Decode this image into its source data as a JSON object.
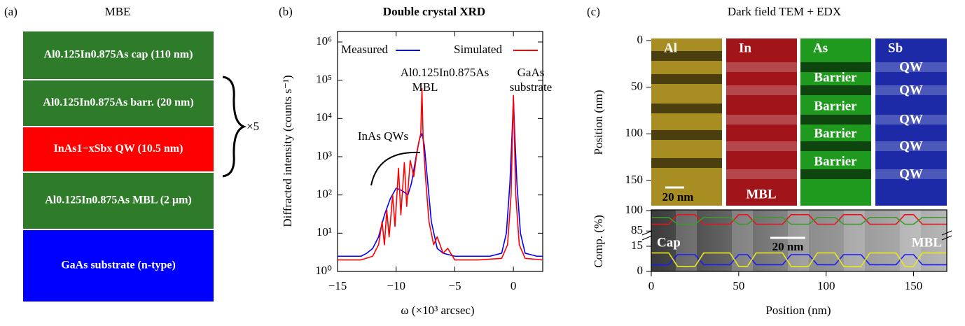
{
  "panel_a": {
    "label": "(a)",
    "title": "MBE",
    "layers": [
      {
        "text": "Al0.125In0.875As cap (110 nm)",
        "color": "#2e7b2a"
      },
      {
        "text": "Al0.125In0.875As barr. (20 nm)",
        "color": "#2e7b2a"
      },
      {
        "text": "InAs1−xSbx QW (10.5 nm)",
        "color": "#ff0000"
      },
      {
        "text": "Al0.125In0.875As MBL (2 μm)",
        "color": "#2e7b2a"
      },
      {
        "text": "GaAs substrate (n-type)",
        "color": "#0000ff"
      }
    ],
    "repeat": "×5"
  },
  "chart_data": [
    {
      "type": "line",
      "label": "(b)",
      "title": "Double crystal XRD",
      "xlabel": "ω (×10³ arcsec)",
      "ylabel": "Diffracted intensity (counts s⁻¹)",
      "log_y": true,
      "xlim": [
        -15,
        2.5
      ],
      "xticks": [
        {
          "value": -15,
          "label": "−15"
        },
        {
          "value": -10,
          "label": "−10"
        },
        {
          "value": -5,
          "label": "−5"
        },
        0
      ],
      "ylim": [
        1,
        1000000
      ],
      "yticks": [
        {
          "value": 1,
          "label": "10⁰"
        },
        {
          "value": 10,
          "label": "10¹"
        },
        {
          "value": 100,
          "label": "10²"
        },
        {
          "value": 1000,
          "label": "10³"
        },
        {
          "value": 10000,
          "label": "10⁴"
        },
        {
          "value": 100000,
          "label": "10⁵"
        },
        {
          "value": 1000000,
          "label": "10⁶"
        }
      ],
      "annotations": [
        "Al0.125In0.875As",
        "MBL",
        "GaAs",
        "substrate",
        "InAs QWs"
      ],
      "series": [
        {
          "name": "Measured",
          "color": "#0000ff",
          "x": [
            -15,
            -14,
            -13,
            -12.5,
            -12,
            -11.5,
            -11,
            -10.5,
            -10,
            -9.5,
            -9,
            -8.7,
            -8.3,
            -8,
            -7.8,
            -7.6,
            -7.3,
            -7,
            -6.5,
            -6,
            -5,
            -4,
            -3,
            -2,
            -1,
            -0.6,
            -0.3,
            -0.1,
            0,
            0.1,
            0.3,
            0.6,
            1,
            2,
            2.5
          ],
          "values": [
            2.5,
            2.5,
            2.5,
            3,
            4,
            8,
            30,
            80,
            150,
            130,
            100,
            200,
            1000,
            3000,
            4000,
            2000,
            200,
            20,
            4,
            3,
            2.5,
            2.5,
            2.5,
            2.5,
            3,
            10,
            200,
            5000,
            35000,
            5000,
            200,
            10,
            3,
            2.5,
            2.5
          ]
        },
        {
          "name": "Simulated",
          "color": "#ff0000",
          "x": [
            -15,
            -13,
            -12,
            -11.5,
            -11.2,
            -11,
            -10.8,
            -10.6,
            -10.3,
            -10.1,
            -9.8,
            -9.6,
            -9.3,
            -9.1,
            -8.8,
            -8.5,
            -8.2,
            -8,
            -7.9,
            -7.8,
            -7.7,
            -7.5,
            -7.2,
            -6.8,
            -6.5,
            -6,
            -5.6,
            -5,
            -3,
            -1,
            -0.5,
            -0.2,
            0,
            0.2,
            0.5,
            1,
            2.5
          ],
          "values": [
            2,
            2,
            2.5,
            5,
            20,
            5,
            40,
            8,
            100,
            15,
            500,
            30,
            700,
            50,
            800,
            300,
            1500,
            3000,
            4000,
            60000,
            3000,
            300,
            20,
            5,
            8,
            3,
            4,
            2,
            2,
            2.2,
            5,
            100,
            40000,
            100,
            5,
            2.2,
            2
          ]
        }
      ]
    },
    {
      "type": "line",
      "xlabel": "Position (nm)",
      "ylabel": "Comp. (%)",
      "xlim": [
        0,
        169
      ],
      "xticks": [
        0,
        50,
        100,
        150
      ],
      "ylim": [
        0,
        100
      ],
      "yticks": [
        0,
        15,
        85,
        100
      ],
      "ybreak": [
        20,
        80
      ],
      "annotations": [
        "Cap",
        "20 nm",
        "MBL"
      ],
      "x": [
        0,
        5,
        10,
        15,
        20,
        25,
        30,
        35,
        40,
        45,
        50,
        55,
        60,
        65,
        70,
        75,
        80,
        85,
        90,
        95,
        100,
        105,
        110,
        115,
        120,
        125,
        130,
        135,
        140,
        145,
        150,
        155,
        160,
        165,
        170,
        175
      ],
      "series": [
        {
          "color": "#e8141a",
          "values": [
            90,
            90,
            90,
            97,
            97,
            97,
            90,
            90,
            90,
            90,
            97,
            97,
            90,
            90,
            90,
            90,
            97,
            97,
            97,
            90,
            90,
            90,
            97,
            97,
            97,
            90,
            90,
            90,
            90,
            97,
            97,
            90,
            90,
            90,
            90,
            90
          ]
        },
        {
          "color": "#3a9a2a",
          "values": [
            95,
            95,
            95,
            90,
            90,
            90,
            95,
            95,
            95,
            95,
            90,
            90,
            95,
            95,
            95,
            95,
            90,
            90,
            90,
            95,
            95,
            95,
            90,
            90,
            90,
            95,
            95,
            95,
            95,
            90,
            90,
            95,
            95,
            95,
            95,
            95
          ]
        },
        {
          "color": "#1a1aff",
          "values": [
            4,
            4,
            4,
            10,
            10,
            10,
            4,
            4,
            4,
            4,
            10,
            10,
            4,
            4,
            4,
            4,
            10,
            10,
            10,
            4,
            4,
            4,
            10,
            10,
            10,
            4,
            4,
            4,
            4,
            10,
            10,
            4,
            4,
            4,
            4,
            4
          ]
        },
        {
          "color": "#e8e81a",
          "values": [
            11,
            11,
            11,
            3,
            3,
            3,
            11,
            11,
            11,
            11,
            3,
            3,
            11,
            11,
            11,
            11,
            3,
            3,
            3,
            11,
            11,
            11,
            3,
            3,
            3,
            11,
            11,
            11,
            11,
            3,
            3,
            11,
            11,
            11,
            11,
            11
          ]
        }
      ]
    }
  ],
  "panel_c": {
    "label": "(c)",
    "title": "Dark field TEM + EDX",
    "ylabel": "Position (nm)",
    "ylim": [
      0,
      177
    ],
    "yticks": [
      0,
      50,
      100,
      150
    ],
    "channels": [
      {
        "name": "Al",
        "color": "#a88d22"
      },
      {
        "name": "In",
        "color": "#a0141a"
      },
      {
        "name": "As",
        "color": "#1f9a1f"
      },
      {
        "name": "Sb",
        "color": "#1c2aa8"
      }
    ],
    "barrier_labels": [
      "Barrier",
      "Barrier",
      "Barrier",
      "Barrier"
    ],
    "qw_labels": [
      "QW",
      "QW",
      "QW",
      "QW",
      "QW"
    ],
    "mbl_label": "MBL",
    "scale_bar": "20 nm"
  }
}
